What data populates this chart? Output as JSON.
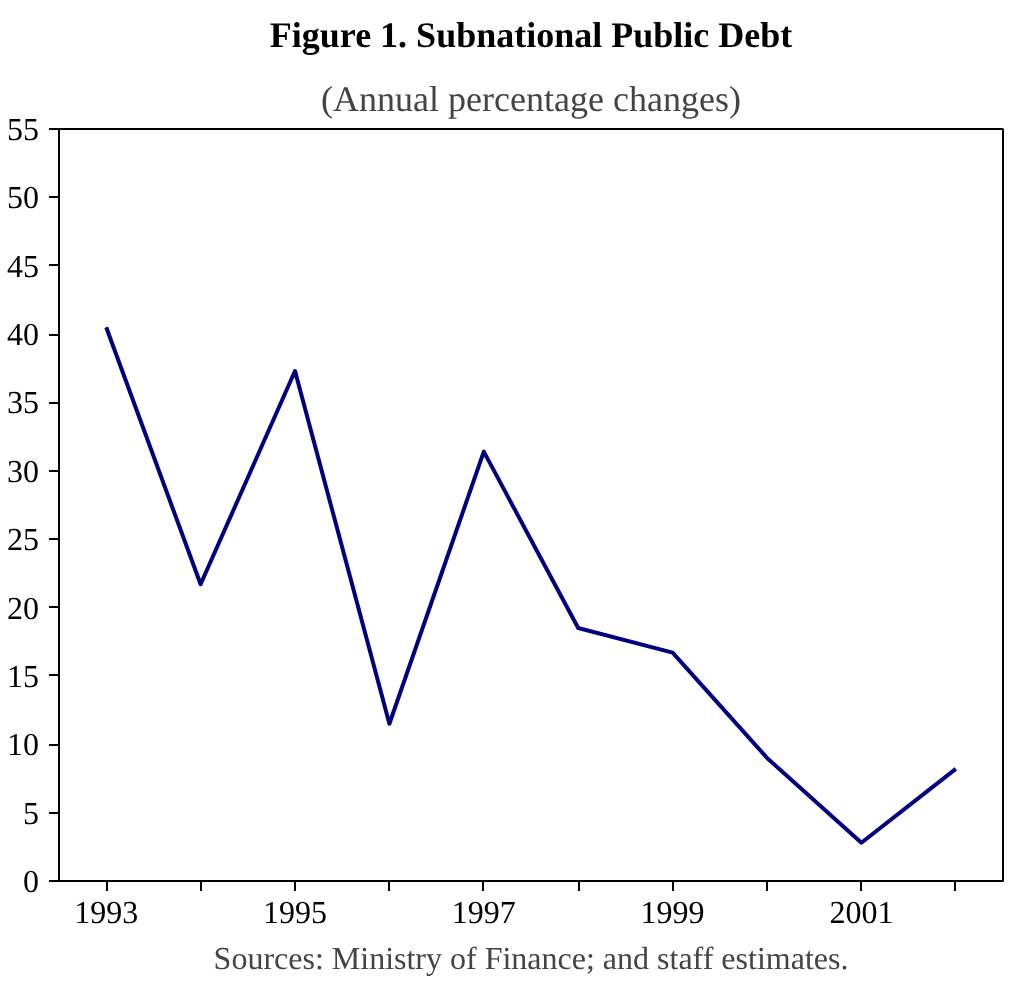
{
  "chart_data": {
    "type": "line",
    "title": "Figure 1. Subnational Public Debt",
    "subtitle": "(Annual percentage changes)",
    "categories": [
      "1993",
      null,
      "1995",
      null,
      "1997",
      null,
      "1999",
      null,
      "2001",
      null
    ],
    "series": [
      {
        "color": "#000080",
        "values": [
          40.5,
          21.7,
          37.3,
          11.5,
          31.4,
          18.5,
          16.7,
          9.0,
          2.8,
          8.2
        ]
      }
    ],
    "ylim": [
      0,
      55
    ],
    "yticks": [
      0,
      5,
      10,
      15,
      20,
      25,
      30,
      35,
      40,
      45,
      50,
      55
    ],
    "grid": false,
    "line_style": "solid",
    "annotations": [
      "Sources: Ministry of Finance; and staff estimates."
    ]
  }
}
